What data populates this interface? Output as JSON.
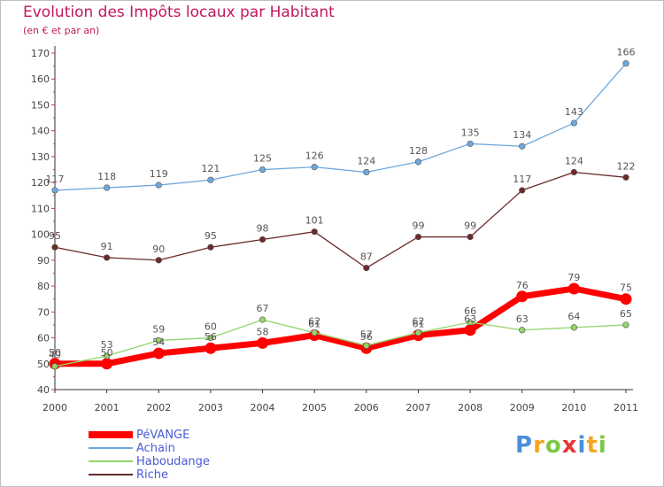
{
  "header": {
    "title": "Evolution des Impôts locaux par Habitant",
    "subtitle": "(en € et par an)"
  },
  "chart_data": {
    "type": "line",
    "title": "Evolution des Impôts locaux par Habitant",
    "subtitle": "(en € et par an)",
    "xlabel": "",
    "ylabel": "",
    "x": [
      "2000",
      "2001",
      "2002",
      "2003",
      "2004",
      "2005",
      "2006",
      "2007",
      "2008",
      "2009",
      "2010",
      "2011"
    ],
    "ylim": [
      40,
      170
    ],
    "yticks": [
      40,
      50,
      60,
      70,
      80,
      90,
      100,
      110,
      120,
      130,
      140,
      150,
      160,
      170
    ],
    "grid": false,
    "legend_position": "bottom-left",
    "series": [
      {
        "name": "PéVANGE",
        "color": "#ff0000",
        "values": [
          50,
          50,
          54,
          56,
          58,
          61,
          56,
          61,
          63,
          76,
          79,
          75
        ]
      },
      {
        "name": "Achain",
        "color": "#6fa8dc",
        "values": [
          117,
          118,
          119,
          121,
          125,
          126,
          124,
          128,
          135,
          134,
          143,
          166
        ]
      },
      {
        "name": "Haboudange",
        "color": "#93d46b",
        "values": [
          49,
          53,
          59,
          60,
          67,
          62,
          57,
          62,
          66,
          63,
          64,
          65
        ]
      },
      {
        "name": "Riche",
        "color": "#6b2a2a",
        "values": [
          95,
          91,
          90,
          95,
          98,
          101,
          87,
          99,
          99,
          117,
          124,
          122
        ]
      }
    ]
  },
  "logo": {
    "letters": [
      {
        "char": "P",
        "color": "#4a90d9"
      },
      {
        "char": "r",
        "color": "#f5a623"
      },
      {
        "char": "o",
        "color": "#7ac943"
      },
      {
        "char": "x",
        "color": "#e53935"
      },
      {
        "char": "i",
        "color": "#4a90d9"
      },
      {
        "char": "t",
        "color": "#f5a623"
      },
      {
        "char": "i",
        "color": "#7ac943"
      }
    ]
  }
}
